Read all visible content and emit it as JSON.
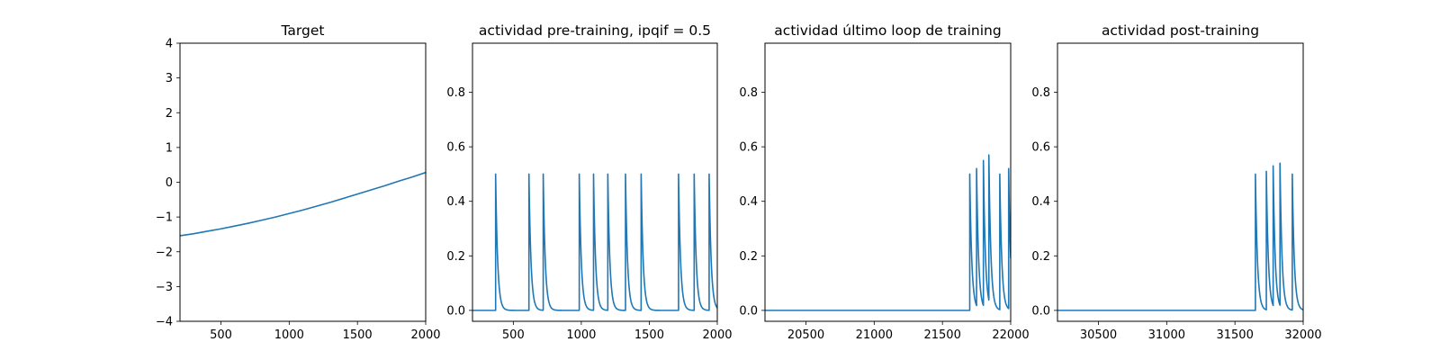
{
  "chart_data": [
    {
      "type": "line",
      "title": "Target",
      "xlim": [
        200,
        2000
      ],
      "ylim": [
        -4,
        4
      ],
      "xticks": [
        500,
        1000,
        1500,
        2000
      ],
      "yticks": [
        -4,
        -3,
        -2,
        -1,
        0,
        1,
        2,
        3,
        4
      ],
      "xtick_labels": [
        "500",
        "1000",
        "1500",
        "2000"
      ],
      "ytick_labels": [
        "−4",
        "−3",
        "−2",
        "−1",
        "0",
        "1",
        "2",
        "3",
        "4"
      ],
      "series": [
        {
          "color": "#1f77b4",
          "x": [
            200,
            300,
            400,
            500,
            600,
            700,
            800,
            900,
            1000,
            1100,
            1200,
            1300,
            1400,
            1500,
            1600,
            1700,
            1800,
            1900,
            2000
          ],
          "y": [
            -1.54,
            -1.48,
            -1.41,
            -1.34,
            -1.26,
            -1.18,
            -1.09,
            -1.0,
            -0.9,
            -0.8,
            -0.69,
            -0.58,
            -0.46,
            -0.34,
            -0.22,
            -0.1,
            0.03,
            0.15,
            0.28
          ]
        }
      ]
    },
    {
      "type": "line",
      "title": "actividad pre-training, ipqif = 0.5",
      "xlim": [
        200,
        2000
      ],
      "ylim": [
        -0.04,
        0.98
      ],
      "xticks": [
        500,
        1000,
        1500,
        2000
      ],
      "yticks": [
        0.0,
        0.2,
        0.4,
        0.6,
        0.8
      ],
      "xtick_labels": [
        "500",
        "1000",
        "1500",
        "2000"
      ],
      "ytick_labels": [
        "0.0",
        "0.2",
        "0.4",
        "0.6",
        "0.8"
      ],
      "baseline": 0.0,
      "decay_tau": 15,
      "spikes": [
        {
          "t": 370,
          "h": 0.5
        },
        {
          "t": 615,
          "h": 0.5
        },
        {
          "t": 720,
          "h": 0.5
        },
        {
          "t": 985,
          "h": 0.5
        },
        {
          "t": 1090,
          "h": 0.5
        },
        {
          "t": 1195,
          "h": 0.5
        },
        {
          "t": 1325,
          "h": 0.5
        },
        {
          "t": 1440,
          "h": 0.5
        },
        {
          "t": 1715,
          "h": 0.5
        },
        {
          "t": 1830,
          "h": 0.5
        },
        {
          "t": 1940,
          "h": 0.5
        }
      ],
      "series": [
        {
          "color": "#1f77b4"
        }
      ]
    },
    {
      "type": "line",
      "title": "actividad último loop de training",
      "xlim": [
        20200,
        22000
      ],
      "ylim": [
        -0.04,
        0.98
      ],
      "xticks": [
        20500,
        21000,
        21500,
        22000
      ],
      "yticks": [
        0.0,
        0.2,
        0.4,
        0.6,
        0.8
      ],
      "xtick_labels": [
        "20500",
        "21000",
        "21500",
        "22000"
      ],
      "ytick_labels": [
        "0.0",
        "0.2",
        "0.4",
        "0.6",
        "0.8"
      ],
      "baseline": 0.0,
      "decay_tau": 15,
      "spikes": [
        {
          "t": 21700,
          "h": 0.5
        },
        {
          "t": 21750,
          "h": 0.52
        },
        {
          "t": 21800,
          "h": 0.55
        },
        {
          "t": 21840,
          "h": 0.57
        },
        {
          "t": 21920,
          "h": 0.5
        },
        {
          "t": 21985,
          "h": 0.52
        }
      ],
      "series": [
        {
          "color": "#1f77b4"
        }
      ]
    },
    {
      "type": "line",
      "title": "actividad post-training",
      "xlim": [
        30200,
        32000
      ],
      "ylim": [
        -0.04,
        0.98
      ],
      "xticks": [
        30500,
        31000,
        31500,
        32000
      ],
      "yticks": [
        0.0,
        0.2,
        0.4,
        0.6,
        0.8
      ],
      "xtick_labels": [
        "30500",
        "31000",
        "31500",
        "32000"
      ],
      "ytick_labels": [
        "0.0",
        "0.2",
        "0.4",
        "0.6",
        "0.8"
      ],
      "baseline": 0.0,
      "decay_tau": 15,
      "spikes": [
        {
          "t": 31650,
          "h": 0.5
        },
        {
          "t": 31730,
          "h": 0.51
        },
        {
          "t": 31780,
          "h": 0.53
        },
        {
          "t": 31830,
          "h": 0.54
        },
        {
          "t": 31920,
          "h": 0.5
        }
      ],
      "series": [
        {
          "color": "#1f77b4"
        }
      ]
    }
  ]
}
